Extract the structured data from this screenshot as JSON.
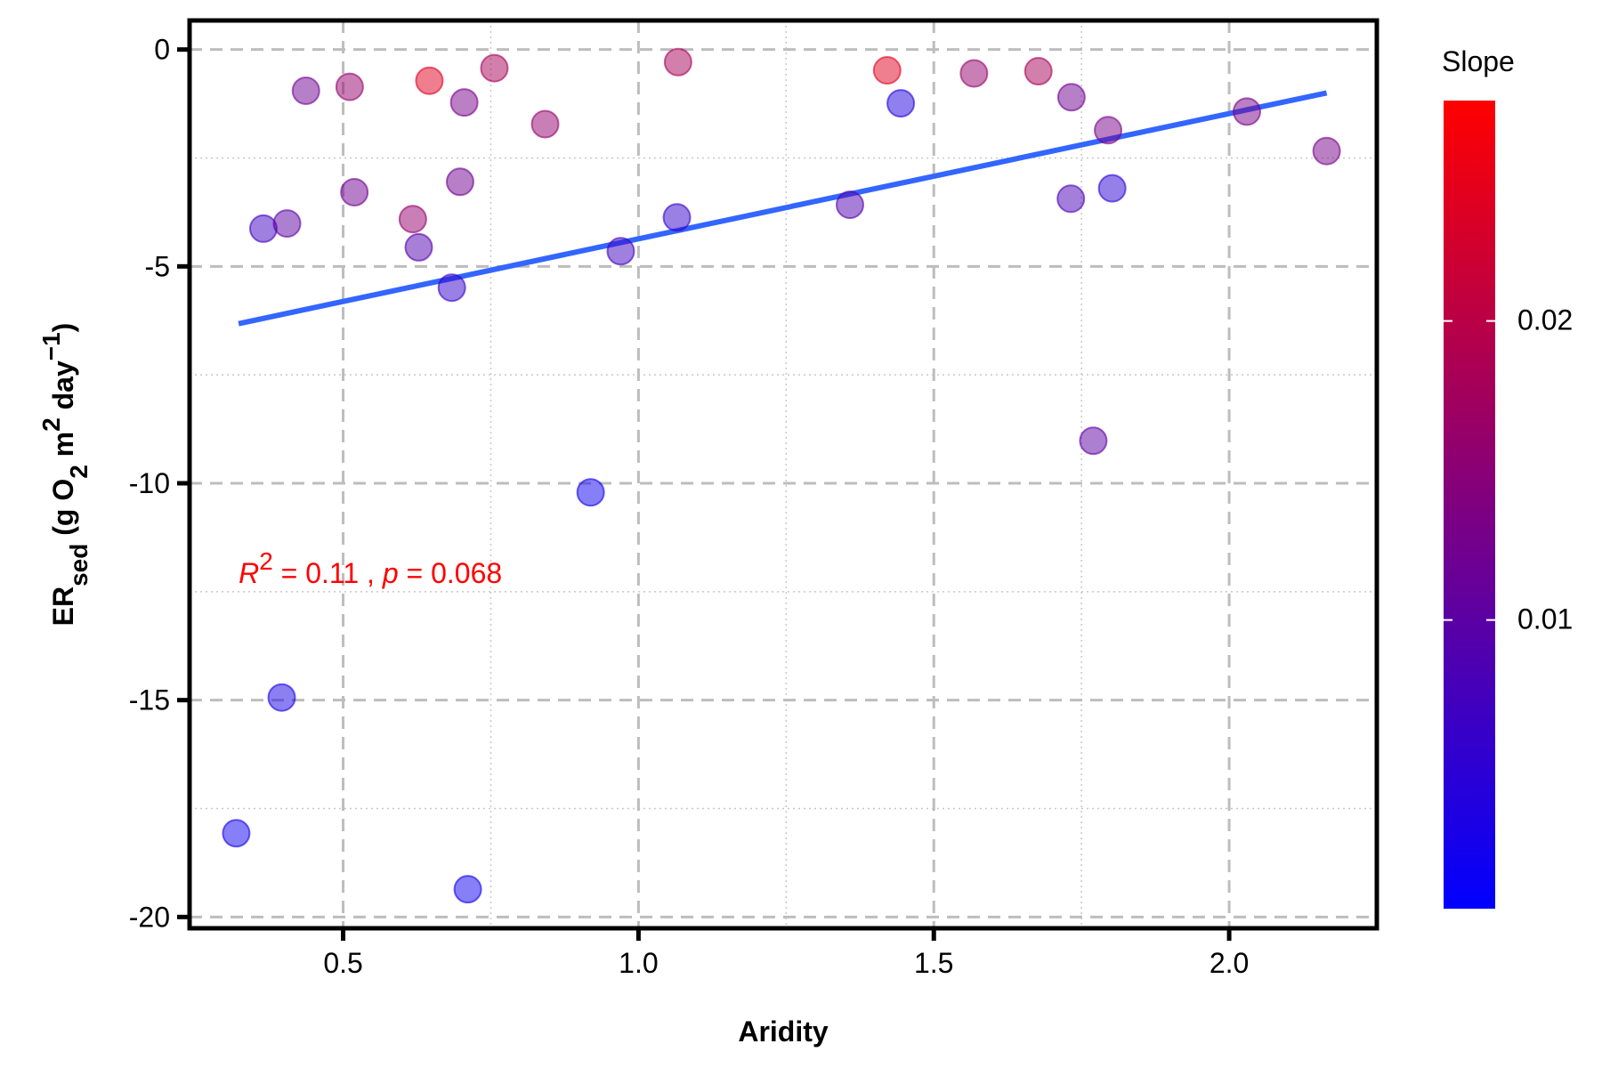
{
  "chart_data": {
    "type": "scatter",
    "xlabel": "Aridity",
    "ylabel_parts": [
      "ER",
      "sed",
      " (g O",
      "2",
      " m",
      "2",
      " day",
      "−1",
      ")"
    ],
    "annotation_parts": [
      "R",
      "2",
      " = 0.11 , ",
      "p",
      " = 0.068"
    ],
    "annotation_color": "#ff0000",
    "x": [
      0.319,
      0.365,
      0.396,
      0.405,
      0.437,
      0.511,
      0.519,
      0.618,
      0.628,
      0.646,
      0.684,
      0.698,
      0.705,
      0.711,
      0.756,
      0.842,
      0.919,
      0.97,
      1.065,
      1.067,
      1.358,
      1.421,
      1.444,
      1.568,
      1.677,
      1.733,
      1.732,
      1.77,
      1.795,
      1.802,
      2.03,
      2.165
    ],
    "y": [
      -18.07,
      -4.13,
      -14.94,
      -4.01,
      -0.95,
      -0.86,
      -3.29,
      -3.91,
      -4.56,
      -0.72,
      -5.49,
      -3.05,
      -1.22,
      -19.36,
      -0.43,
      -1.72,
      -10.21,
      -4.65,
      -3.87,
      -0.29,
      -3.58,
      -0.48,
      -1.24,
      -0.55,
      -0.5,
      -1.1,
      -3.44,
      -9.02,
      -1.86,
      -3.2,
      -1.43,
      -2.34
    ],
    "slope": [
      0.002,
      0.007,
      0.003,
      0.01,
      0.012,
      0.016,
      0.012,
      0.016,
      0.009,
      0.024,
      0.006,
      0.012,
      0.013,
      0.002,
      0.018,
      0.016,
      0.002,
      0.007,
      0.006,
      0.018,
      0.009,
      0.024,
      0.004,
      0.016,
      0.018,
      0.012,
      0.008,
      0.01,
      0.013,
      0.005,
      0.013,
      0.013
    ],
    "fit": {
      "x": [
        0.323,
        2.165
      ],
      "y": [
        -6.32,
        -1.0
      ],
      "color": "#3366ff"
    },
    "xlim": [
      0.24,
      2.25
    ],
    "ylim": [
      -20.26,
      0.67
    ],
    "xticks": [
      0.5,
      {
        "value": 1,
        "label": "1.0"
      },
      1.5,
      {
        "value": 2,
        "label": "2.0"
      }
    ],
    "yticks": [
      -20,
      -15,
      -10,
      -5,
      0
    ],
    "x_minor_grid": [
      0.75,
      1.25,
      1.75
    ],
    "y_minor_grid": [
      -17.5,
      -12.5,
      -7.5,
      -2.5
    ],
    "grid": true,
    "colorbar": {
      "title": "Slope",
      "lim": [
        0.000346,
        0.02737
      ],
      "ticks": [
        0.01,
        0.02
      ],
      "low": "#0000ff",
      "high": "#ff0000"
    }
  }
}
